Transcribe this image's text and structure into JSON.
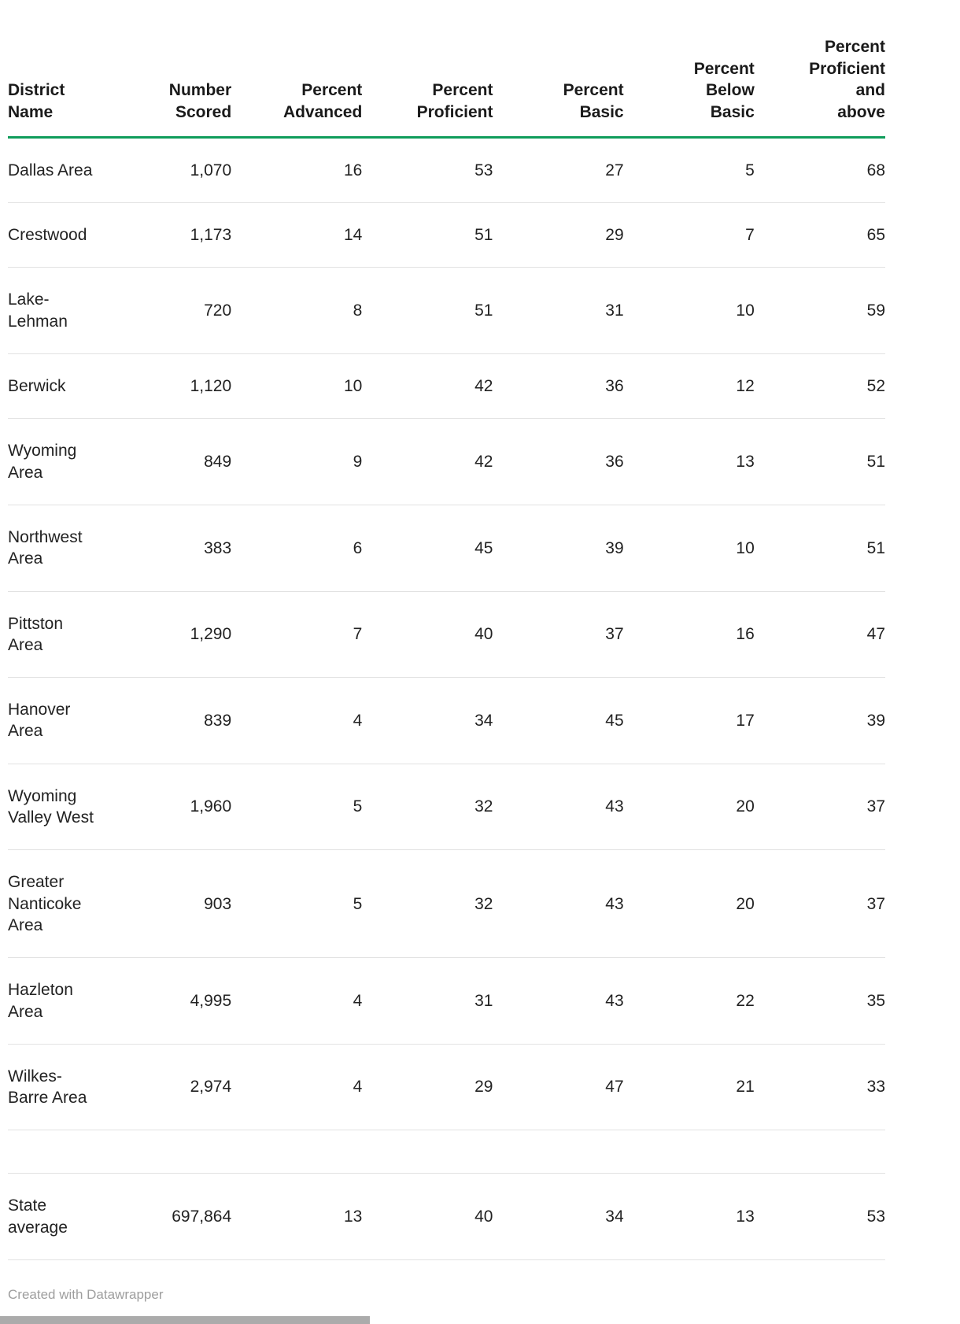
{
  "chart_data": {
    "type": "table",
    "columns": [
      "District\nName",
      "Number\nScored",
      "Percent\nAdvanced",
      "Percent\nProficient",
      "Percent\nBasic",
      "Percent\nBelow\nBasic",
      "Percent\nProficient\nand\nabove"
    ],
    "rows": [
      [
        "Dallas Area",
        "1,070",
        "16",
        "53",
        "27",
        "5",
        "68"
      ],
      [
        "Crestwood",
        "1,173",
        "14",
        "51",
        "29",
        "7",
        "65"
      ],
      [
        "Lake-Lehman",
        "720",
        "8",
        "51",
        "31",
        "10",
        "59"
      ],
      [
        "Berwick",
        "1,120",
        "10",
        "42",
        "36",
        "12",
        "52"
      ],
      [
        "Wyoming Area",
        "849",
        "9",
        "42",
        "36",
        "13",
        "51"
      ],
      [
        "Northwest Area",
        "383",
        "6",
        "45",
        "39",
        "10",
        "51"
      ],
      [
        "Pittston Area",
        "1,290",
        "7",
        "40",
        "37",
        "16",
        "47"
      ],
      [
        "Hanover Area",
        "839",
        "4",
        "34",
        "45",
        "17",
        "39"
      ],
      [
        "Wyoming Valley West",
        "1,960",
        "5",
        "32",
        "43",
        "20",
        "37"
      ],
      [
        "Greater Nanticoke Area",
        "903",
        "5",
        "32",
        "43",
        "20",
        "37"
      ],
      [
        "Hazleton Area",
        "4,995",
        "4",
        "31",
        "43",
        "22",
        "35"
      ],
      [
        "Wilkes-Barre Area",
        "2,974",
        "4",
        "29",
        "47",
        "21",
        "33"
      ]
    ],
    "summary_row": [
      "State average",
      "697,864",
      "13",
      "40",
      "34",
      "13",
      "53"
    ]
  },
  "footer": {
    "attribution": "Created with Datawrapper"
  },
  "colors": {
    "header_rule": "#0f9c5b",
    "row_divider": "#e2e2e2",
    "text": "#222222",
    "muted_text": "#9e9e9e"
  }
}
